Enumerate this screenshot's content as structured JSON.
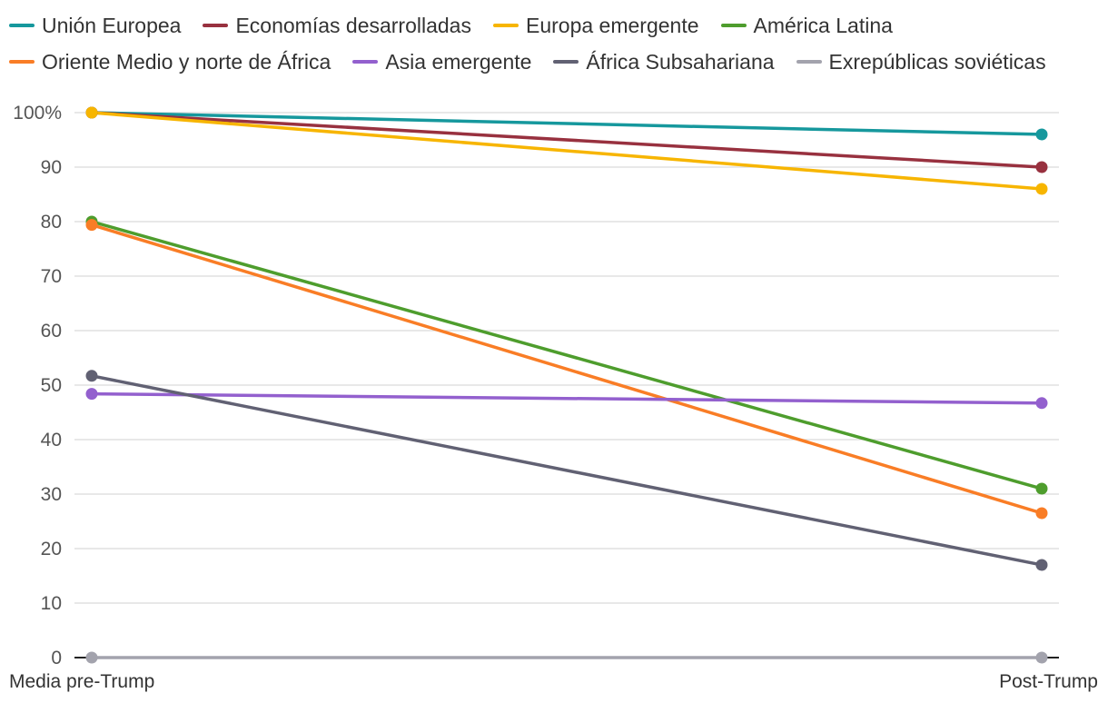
{
  "chart_data": {
    "type": "line",
    "title": "",
    "xlabel": "",
    "ylabel": "",
    "categories": [
      "Media pre-Trump",
      "Post-Trump"
    ],
    "ylim": [
      0,
      100
    ],
    "yticks": [
      "0",
      "10",
      "20",
      "30",
      "40",
      "50",
      "60",
      "70",
      "80",
      "90",
      "100%"
    ],
    "ytick_values": [
      0,
      10,
      20,
      30,
      40,
      50,
      60,
      70,
      80,
      90,
      100
    ],
    "grid": true,
    "legend_position": "top",
    "series": [
      {
        "name": "Unión Europea",
        "color": "#16989d",
        "values": [
          100,
          96
        ]
      },
      {
        "name": "Economías desarrolladas",
        "color": "#98313f",
        "values": [
          100,
          90
        ]
      },
      {
        "name": "Europa emergente",
        "color": "#f7b500",
        "values": [
          100,
          86
        ]
      },
      {
        "name": "América Latina",
        "color": "#4e9d2d",
        "values": [
          80,
          31
        ]
      },
      {
        "name": "Oriente Medio y norte de África",
        "color": "#f97d26",
        "values": [
          79.4,
          26.5
        ]
      },
      {
        "name": "Asia emergente",
        "color": "#9360ce",
        "values": [
          48.4,
          46.7
        ]
      },
      {
        "name": "África Subsahariana",
        "color": "#616173",
        "values": [
          51.7,
          17
        ]
      },
      {
        "name": "Exrepúblicas soviéticas",
        "color": "#a3a3ad",
        "values": [
          0,
          0
        ]
      }
    ]
  }
}
